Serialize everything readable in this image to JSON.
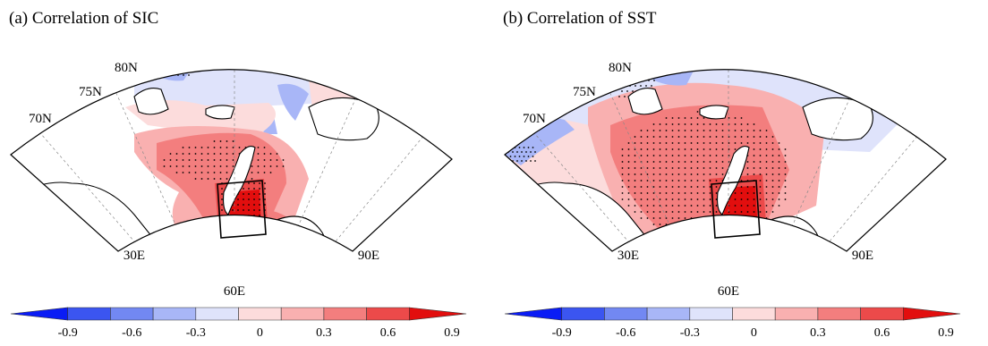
{
  "panels": [
    {
      "title": "(a) Correlation of SIC",
      "lat_labels": [
        "80N",
        "75N",
        "70N"
      ],
      "lon_labels": [
        "30E",
        "60E",
        "90E"
      ]
    },
    {
      "title": "(b) Correlation of SST",
      "lat_labels": [
        "80N",
        "75N",
        "70N"
      ],
      "lon_labels": [
        "30E",
        "60E",
        "90E"
      ]
    }
  ],
  "colorbar": {
    "tick_labels": [
      "-0.9",
      "-0.6",
      "-0.3",
      "0",
      "0.3",
      "0.6",
      "0.9"
    ],
    "colors": [
      "#0a1cf5",
      "#3b55f0",
      "#7288f2",
      "#a8b6f7",
      "#dfe3fb",
      "#fcdcdc",
      "#f9b0b0",
      "#f37e7e",
      "#ec4a4a",
      "#e20e0e"
    ]
  },
  "colors": {
    "land": "#ffffff",
    "coast": "#000000",
    "grid": "#888888"
  }
}
